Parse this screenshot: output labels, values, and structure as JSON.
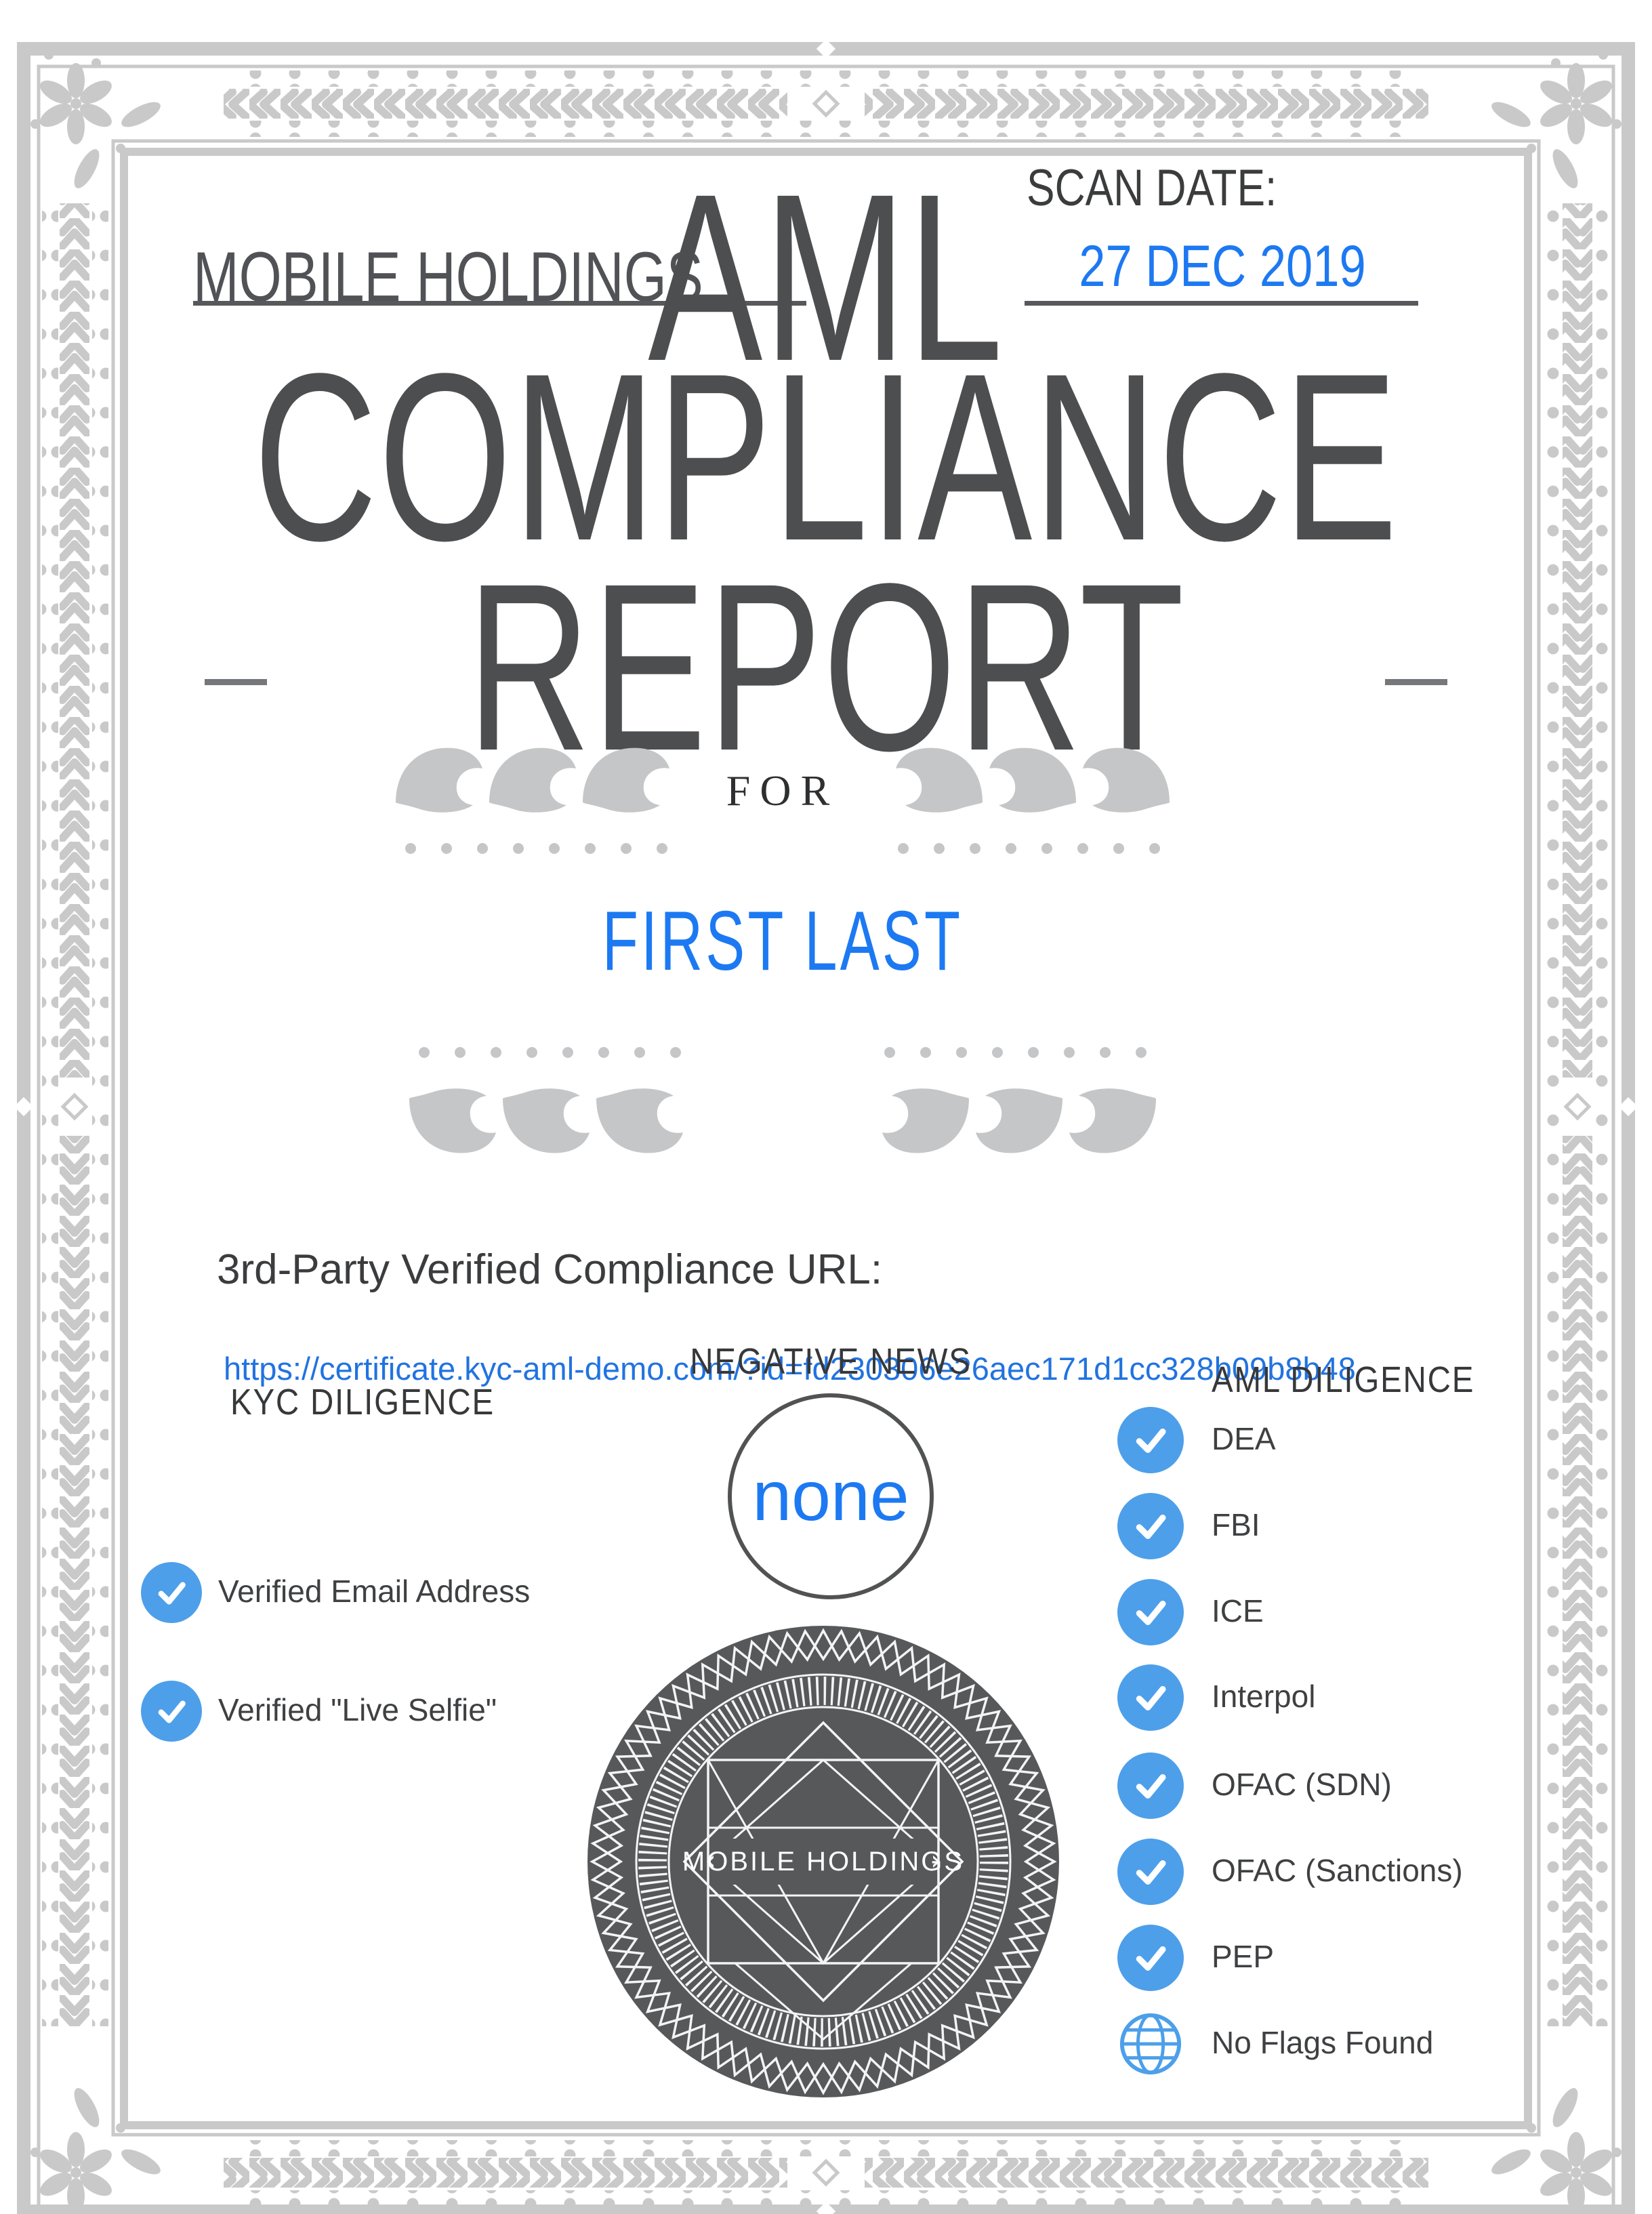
{
  "header": {
    "company": "MOBILE HOLDINGS",
    "scan_date_label": "SCAN DATE:",
    "scan_date": "27 DEC 2019"
  },
  "title": {
    "line1": "AML",
    "line2": "COMPLIANCE",
    "line3": "REPORT"
  },
  "for_label": "FOR",
  "recipient": "FIRST LAST",
  "url_section": {
    "label": "3rd-Party Verified Compliance URL:",
    "url": "https://certificate.kyc-aml-demo.com/?id=fd230306e26aec171d1cc328b09b8b48"
  },
  "kyc": {
    "heading": "KYC DILIGENCE",
    "items": [
      {
        "label": "Verified Email Address"
      },
      {
        "label": "Verified \"Live Selfie\""
      }
    ]
  },
  "negative_news": {
    "heading": "NEGATIVE NEWS",
    "result": "none"
  },
  "aml": {
    "heading": "AML DILIGENCE",
    "items": [
      {
        "label": "DEA"
      },
      {
        "label": "FBI"
      },
      {
        "label": "ICE"
      },
      {
        "label": "Interpol"
      },
      {
        "label": "OFAC (SDN)"
      },
      {
        "label": "OFAC (Sanctions)"
      },
      {
        "label": "PEP"
      }
    ],
    "no_flags_label": "No Flags Found"
  },
  "seal": {
    "text": "MOBILE HOLDINGS"
  },
  "colors": {
    "accent_blue": "#1d79f2",
    "check_blue": "#4d9fea",
    "border_gray": "#c9c9ca",
    "title_gray": "#4d4e50",
    "seal_gray": "#57585a"
  }
}
